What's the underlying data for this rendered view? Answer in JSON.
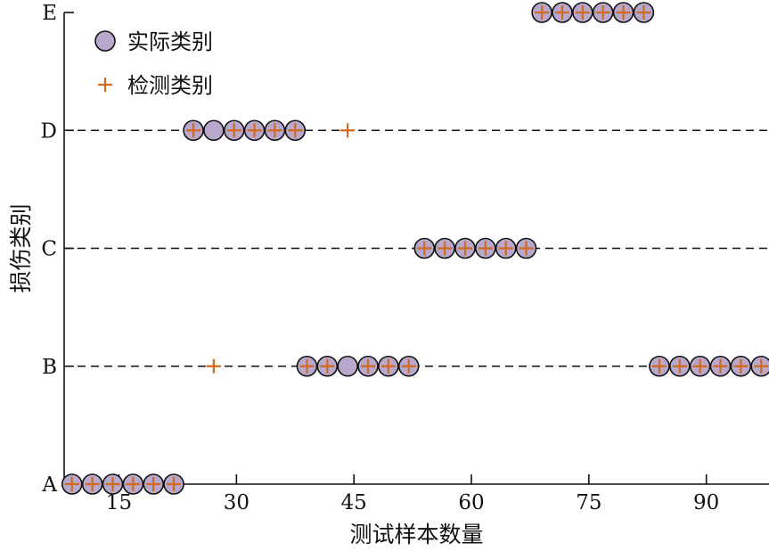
{
  "chart_data": {
    "type": "scatter",
    "xlabel": "测试样本数量",
    "ylabel": "损伤类别",
    "x_ticks": [
      15,
      30,
      45,
      60,
      75,
      90
    ],
    "y_categories": [
      "A",
      "B",
      "C",
      "D",
      "E"
    ],
    "xlim": [
      8,
      98
    ],
    "dashed_gridlines": [
      "B",
      "C",
      "D"
    ],
    "legend": {
      "placement": "top-left"
    },
    "colors": {
      "actual_fill": "#b7a8cc",
      "detected": "#d2691e",
      "axis": "#111111"
    },
    "series": [
      {
        "name": "实际类别",
        "marker": "circle",
        "points": [
          {
            "x": 9,
            "y": "A"
          },
          {
            "x": 11.6,
            "y": "A"
          },
          {
            "x": 14.2,
            "y": "A"
          },
          {
            "x": 16.8,
            "y": "A"
          },
          {
            "x": 19.4,
            "y": "A"
          },
          {
            "x": 22,
            "y": "A"
          },
          {
            "x": 24.5,
            "y": "D"
          },
          {
            "x": 27.1,
            "y": "D"
          },
          {
            "x": 29.7,
            "y": "D"
          },
          {
            "x": 32.3,
            "y": "D"
          },
          {
            "x": 34.9,
            "y": "D"
          },
          {
            "x": 37.5,
            "y": "D"
          },
          {
            "x": 39.0,
            "y": "B"
          },
          {
            "x": 41.6,
            "y": "B"
          },
          {
            "x": 44.2,
            "y": "B"
          },
          {
            "x": 46.8,
            "y": "B"
          },
          {
            "x": 49.4,
            "y": "B"
          },
          {
            "x": 52,
            "y": "B"
          },
          {
            "x": 54.0,
            "y": "C"
          },
          {
            "x": 56.6,
            "y": "C"
          },
          {
            "x": 59.2,
            "y": "C"
          },
          {
            "x": 61.8,
            "y": "C"
          },
          {
            "x": 64.4,
            "y": "C"
          },
          {
            "x": 67,
            "y": "C"
          },
          {
            "x": 69.0,
            "y": "E"
          },
          {
            "x": 71.6,
            "y": "E"
          },
          {
            "x": 74.2,
            "y": "E"
          },
          {
            "x": 76.8,
            "y": "E"
          },
          {
            "x": 79.4,
            "y": "E"
          },
          {
            "x": 82,
            "y": "E"
          },
          {
            "x": 84.0,
            "y": "B"
          },
          {
            "x": 86.6,
            "y": "B"
          },
          {
            "x": 89.2,
            "y": "B"
          },
          {
            "x": 91.8,
            "y": "B"
          },
          {
            "x": 94.4,
            "y": "B"
          },
          {
            "x": 97,
            "y": "B"
          }
        ]
      },
      {
        "name": "检测类别",
        "marker": "plus",
        "points": [
          {
            "x": 9,
            "y": "A"
          },
          {
            "x": 11.6,
            "y": "A"
          },
          {
            "x": 14.2,
            "y": "A"
          },
          {
            "x": 16.8,
            "y": "A"
          },
          {
            "x": 19.4,
            "y": "A"
          },
          {
            "x": 22,
            "y": "A"
          },
          {
            "x": 24.5,
            "y": "D"
          },
          {
            "x": 27.1,
            "y": "B"
          },
          {
            "x": 29.7,
            "y": "D"
          },
          {
            "x": 32.3,
            "y": "D"
          },
          {
            "x": 34.9,
            "y": "D"
          },
          {
            "x": 37.5,
            "y": "D"
          },
          {
            "x": 39.0,
            "y": "B"
          },
          {
            "x": 41.6,
            "y": "B"
          },
          {
            "x": 44.2,
            "y": "D"
          },
          {
            "x": 46.8,
            "y": "B"
          },
          {
            "x": 49.4,
            "y": "B"
          },
          {
            "x": 52,
            "y": "B"
          },
          {
            "x": 54.0,
            "y": "C"
          },
          {
            "x": 56.6,
            "y": "C"
          },
          {
            "x": 59.2,
            "y": "C"
          },
          {
            "x": 61.8,
            "y": "C"
          },
          {
            "x": 64.4,
            "y": "C"
          },
          {
            "x": 67,
            "y": "C"
          },
          {
            "x": 69.0,
            "y": "E"
          },
          {
            "x": 71.6,
            "y": "E"
          },
          {
            "x": 74.2,
            "y": "E"
          },
          {
            "x": 76.8,
            "y": "E"
          },
          {
            "x": 79.4,
            "y": "E"
          },
          {
            "x": 82,
            "y": "E"
          },
          {
            "x": 84.0,
            "y": "B"
          },
          {
            "x": 86.6,
            "y": "B"
          },
          {
            "x": 89.2,
            "y": "B"
          },
          {
            "x": 91.8,
            "y": "B"
          },
          {
            "x": 94.4,
            "y": "B"
          },
          {
            "x": 97,
            "y": "B"
          }
        ]
      }
    ]
  }
}
